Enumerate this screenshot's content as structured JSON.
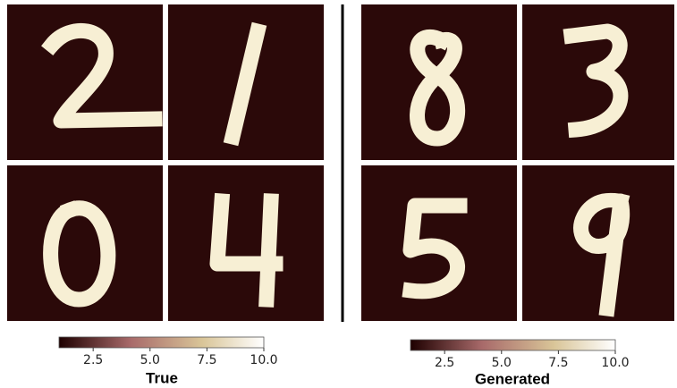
{
  "panels": [
    {
      "title": "True",
      "colorbar": {
        "lim": [
          1,
          10
        ],
        "ticks": [
          2.5,
          {
            "value": 5,
            "label": "5.0"
          },
          7.5,
          {
            "value": 10,
            "label": "10.0"
          }
        ]
      }
    },
    {
      "title": "Generated",
      "colorbar": {
        "lim": [
          1,
          10
        ],
        "ticks": [
          2.5,
          {
            "value": 5,
            "label": "5.0"
          },
          7.5,
          {
            "value": 10,
            "label": "10.0"
          }
        ]
      }
    }
  ]
}
